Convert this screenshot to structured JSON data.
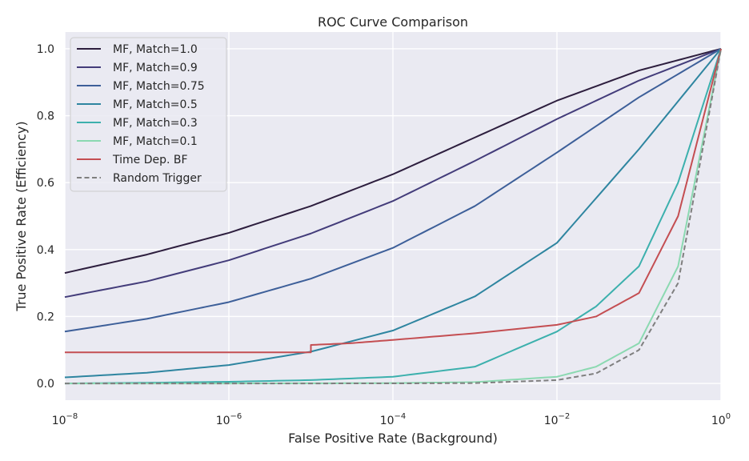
{
  "chart_data": {
    "type": "line",
    "title": "ROC Curve Comparison",
    "xlabel": "False Positive Rate (Background)",
    "ylabel": "True Positive Rate (Efficiency)",
    "xscale": "log",
    "xlim": [
      1e-08,
      1
    ],
    "ylim": [
      -0.05,
      1.05
    ],
    "x_ticks": [
      {
        "value": 1e-08,
        "base": "10",
        "exp": "−8"
      },
      {
        "value": 1e-06,
        "base": "10",
        "exp": "−6"
      },
      {
        "value": 0.0001,
        "base": "10",
        "exp": "−4"
      },
      {
        "value": 0.01,
        "base": "10",
        "exp": "−2"
      },
      {
        "value": 1,
        "base": "10",
        "exp": "0"
      }
    ],
    "y_ticks": [
      {
        "value": 0.0,
        "label": "0.0"
      },
      {
        "value": 0.2,
        "label": "0.2"
      },
      {
        "value": 0.4,
        "label": "0.4"
      },
      {
        "value": 0.6,
        "label": "0.6"
      },
      {
        "value": 0.8,
        "label": "0.8"
      },
      {
        "value": 1.0,
        "label": "1.0"
      }
    ],
    "grid": true,
    "legend": "upper-left",
    "series": [
      {
        "name": "MF, Match=1.0",
        "color": "#2d1e3e",
        "dash": "solid",
        "x": [
          1e-08,
          1e-07,
          1e-06,
          1e-05,
          0.0001,
          0.001,
          0.01,
          0.1,
          1
        ],
        "y": [
          0.33,
          0.385,
          0.45,
          0.53,
          0.625,
          0.735,
          0.845,
          0.935,
          1.0
        ]
      },
      {
        "name": "MF, Match=0.9",
        "color": "#433c7a",
        "dash": "solid",
        "x": [
          1e-08,
          1e-07,
          1e-06,
          1e-05,
          0.0001,
          0.001,
          0.01,
          0.1,
          1
        ],
        "y": [
          0.258,
          0.305,
          0.368,
          0.448,
          0.545,
          0.665,
          0.79,
          0.905,
          1.0
        ]
      },
      {
        "name": "MF, Match=0.75",
        "color": "#3d5f99",
        "dash": "solid",
        "x": [
          1e-08,
          1e-07,
          1e-06,
          1e-05,
          0.0001,
          0.001,
          0.01,
          0.1,
          1
        ],
        "y": [
          0.155,
          0.193,
          0.243,
          0.313,
          0.405,
          0.53,
          0.69,
          0.855,
          1.0
        ]
      },
      {
        "name": "MF, Match=0.5",
        "color": "#2e85a0",
        "dash": "solid",
        "x": [
          1e-08,
          1e-07,
          1e-06,
          1e-05,
          0.0001,
          0.001,
          0.01,
          0.1,
          1
        ],
        "y": [
          0.018,
          0.032,
          0.055,
          0.095,
          0.158,
          0.26,
          0.42,
          0.7,
          1.0
        ]
      },
      {
        "name": "MF, Match=0.3",
        "color": "#3cb0ad",
        "dash": "solid",
        "x": [
          1e-08,
          1e-07,
          1e-06,
          1e-05,
          0.0001,
          0.001,
          0.01,
          0.03,
          0.1,
          0.3,
          1
        ],
        "y": [
          0.0,
          0.002,
          0.005,
          0.01,
          0.02,
          0.05,
          0.155,
          0.23,
          0.35,
          0.6,
          1.0
        ]
      },
      {
        "name": "MF, Match=0.1",
        "color": "#8bd9b1",
        "dash": "solid",
        "x": [
          1e-08,
          1e-06,
          0.0001,
          0.001,
          0.01,
          0.03,
          0.1,
          0.3,
          1
        ],
        "y": [
          0.0,
          0.0,
          0.001,
          0.004,
          0.02,
          0.05,
          0.12,
          0.35,
          1.0
        ]
      },
      {
        "name": "Time Dep. BF",
        "color": "#c44e52",
        "dash": "solid",
        "x": [
          1e-08,
          1e-05,
          1e-05,
          3e-05,
          0.0001,
          0.001,
          0.01,
          0.03,
          0.1,
          0.3,
          1
        ],
        "y": [
          0.093,
          0.093,
          0.115,
          0.12,
          0.13,
          0.15,
          0.175,
          0.2,
          0.27,
          0.5,
          1.0
        ]
      },
      {
        "name": "Random Trigger",
        "color": "#7f7f7f",
        "dash": "dashed",
        "x": [
          1e-08,
          1e-06,
          0.0001,
          0.001,
          0.01,
          0.03,
          0.1,
          0.3,
          1
        ],
        "y": [
          1e-08,
          1e-06,
          0.0001,
          0.001,
          0.01,
          0.03,
          0.1,
          0.3,
          1.0
        ]
      }
    ]
  }
}
